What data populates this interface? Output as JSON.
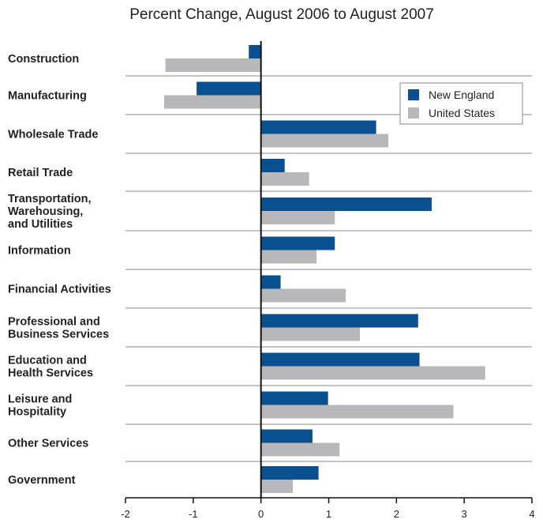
{
  "colors": {
    "new_england": "#0a4f8f",
    "united_states": "#b8b8ba",
    "separator": "#8a8a8a",
    "axis": "#111111"
  },
  "chart_data": {
    "type": "bar",
    "orientation": "horizontal",
    "title": "Percent Change, August 2006 to August 2007",
    "xlabel": "",
    "ylabel": "",
    "xlim": [
      -2,
      4
    ],
    "xticks": [
      -2,
      -1,
      0,
      1,
      2,
      3,
      4
    ],
    "legend_position": "top-right",
    "categories": [
      [
        "Construction"
      ],
      [
        "Manufacturing"
      ],
      [
        "Wholesale Trade"
      ],
      [
        "Retail Trade"
      ],
      [
        "Transportation,",
        "Warehousing,",
        "and Utilities"
      ],
      [
        "Information"
      ],
      [
        "Financial Activities"
      ],
      [
        "Professional and",
        "Business Services"
      ],
      [
        "Education and",
        "Health Services"
      ],
      [
        "Leisure and",
        "Hospitality"
      ],
      [
        "Other Services"
      ],
      [
        "Government"
      ]
    ],
    "series": [
      {
        "name": "New England",
        "values": [
          -0.18,
          -0.95,
          1.7,
          0.35,
          2.52,
          1.09,
          0.29,
          2.32,
          2.34,
          0.99,
          0.76,
          0.85
        ]
      },
      {
        "name": "United States",
        "values": [
          -1.41,
          -1.43,
          1.88,
          0.71,
          1.09,
          0.82,
          1.25,
          1.46,
          3.31,
          2.84,
          1.16,
          0.47
        ]
      }
    ]
  }
}
